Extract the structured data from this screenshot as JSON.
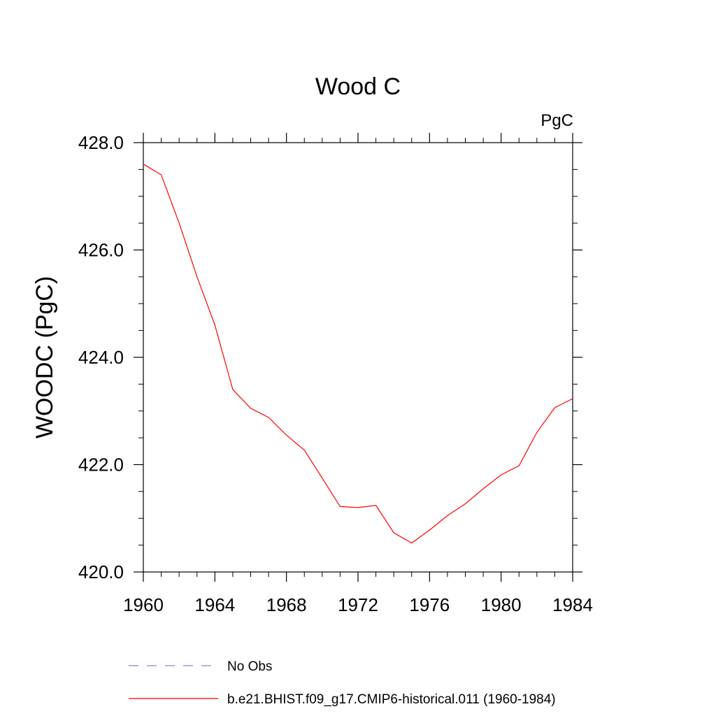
{
  "chart_data": {
    "type": "line",
    "title": "Wood C",
    "units_label": "PgC",
    "ylabel": "WOODC  (PgC)",
    "xlabel": "",
    "xlim": [
      1960,
      1984
    ],
    "ylim": [
      420.0,
      428.0
    ],
    "x_ticks": [
      1960,
      1964,
      1968,
      1972,
      1976,
      1980,
      1984
    ],
    "x_tick_labels": [
      "1960",
      "1964",
      "1968",
      "1972",
      "1976",
      "1980",
      "1984"
    ],
    "y_ticks": [
      420.0,
      422.0,
      424.0,
      426.0,
      428.0
    ],
    "y_tick_labels": [
      "420.0",
      "422.0",
      "424.0",
      "426.0",
      "428.0"
    ],
    "grid": false,
    "legend_position": "bottom",
    "series": [
      {
        "name": "b.e21.BHIST.f09_g17.CMIP6-historical.011 (1960-1984)",
        "color": "#ff0000",
        "style": "solid",
        "x": [
          1960,
          1961,
          1962,
          1963,
          1964,
          1965,
          1966,
          1967,
          1968,
          1969,
          1970,
          1971,
          1972,
          1973,
          1974,
          1975,
          1976,
          1977,
          1978,
          1979,
          1980,
          1981,
          1982,
          1983,
          1984
        ],
        "y": [
          427.6,
          427.4,
          426.5,
          425.5,
          424.6,
          423.4,
          423.05,
          422.88,
          422.55,
          422.27,
          421.75,
          421.22,
          421.2,
          421.24,
          420.73,
          420.54,
          420.78,
          421.05,
          421.27,
          421.55,
          421.81,
          421.98,
          422.6,
          423.06,
          423.23
        ]
      },
      {
        "name": "No Obs",
        "color": "#8a84c8",
        "style": "dashed",
        "x": [],
        "y": []
      }
    ]
  }
}
